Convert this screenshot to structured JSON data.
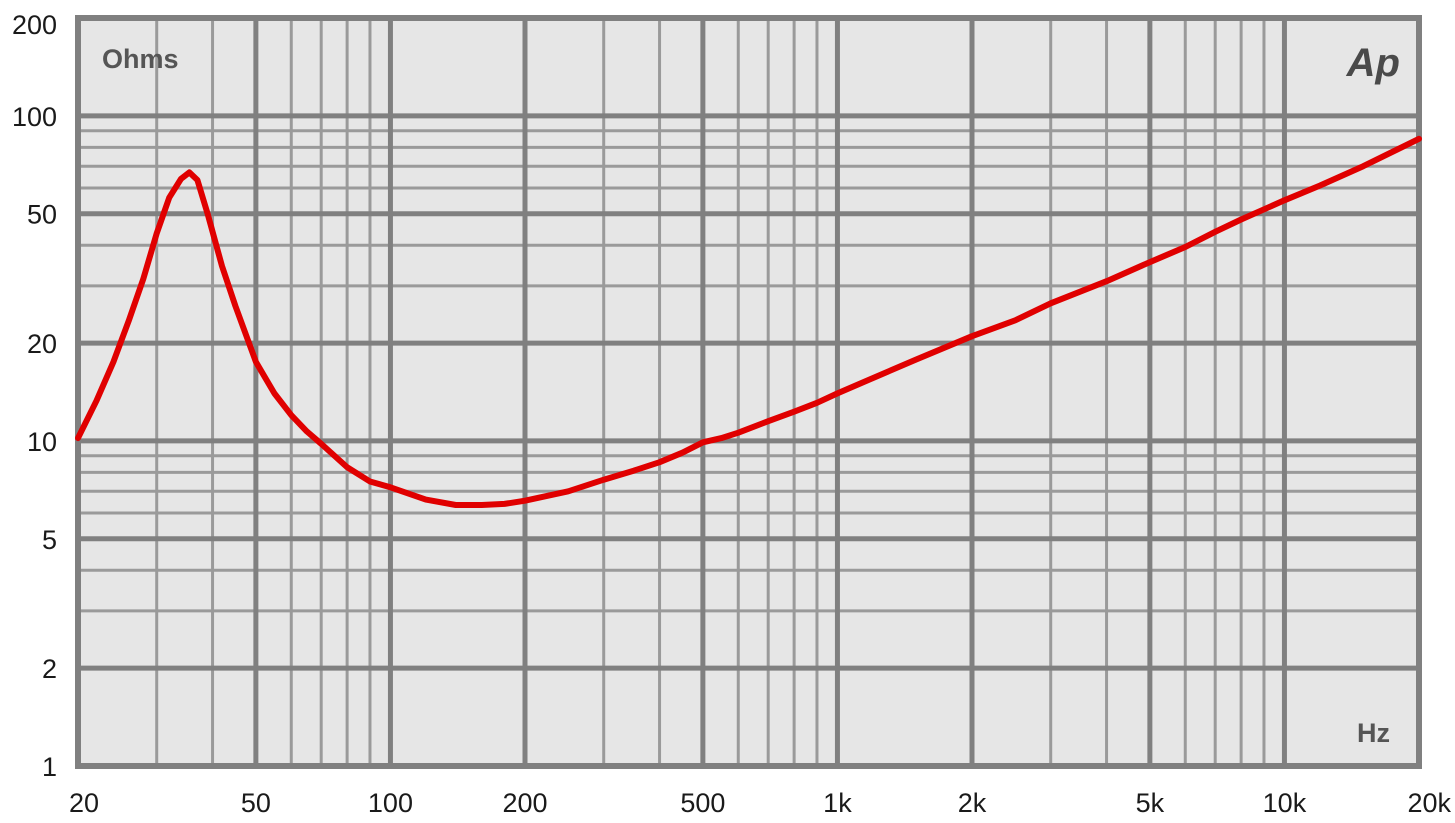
{
  "chart_data": {
    "type": "line",
    "title": "",
    "xlabel": "Hz",
    "ylabel": "Ohms",
    "x_scale": "log",
    "y_scale": "log",
    "xlim": [
      20,
      20000
    ],
    "ylim": [
      1,
      200
    ],
    "grid": true,
    "x_ticks": [
      {
        "value": 20,
        "label": "20"
      },
      {
        "value": 50,
        "label": "50"
      },
      {
        "value": 100,
        "label": "100"
      },
      {
        "value": 200,
        "label": "200"
      },
      {
        "value": 500,
        "label": "500"
      },
      {
        "value": 1000,
        "label": "1k"
      },
      {
        "value": 2000,
        "label": "2k"
      },
      {
        "value": 5000,
        "label": "5k"
      },
      {
        "value": 10000,
        "label": "10k"
      },
      {
        "value": 20000,
        "label": "20k"
      }
    ],
    "y_ticks": [
      {
        "value": 1,
        "label": "1"
      },
      {
        "value": 2,
        "label": "2"
      },
      {
        "value": 5,
        "label": "5"
      },
      {
        "value": 10,
        "label": "10"
      },
      {
        "value": 20,
        "label": "20"
      },
      {
        "value": 50,
        "label": "50"
      },
      {
        "value": 100,
        "label": "100"
      },
      {
        "value": 200,
        "label": "200"
      }
    ],
    "logo_text": "Ap",
    "colors": {
      "plot_background": "#e6e6e6",
      "grid_major": "#808080",
      "grid_minor": "#9a9a9a",
      "line": "#e00000"
    },
    "series": [
      {
        "color": "#e00000",
        "x": [
          20,
          22,
          24,
          26,
          28,
          30,
          32,
          34,
          35.5,
          37,
          39,
          42,
          45,
          50,
          55,
          60,
          65,
          70,
          80,
          90,
          100,
          120,
          140,
          160,
          180,
          200,
          250,
          300,
          350,
          400,
          450,
          500,
          550,
          600,
          700,
          800,
          900,
          1000,
          1200,
          1500,
          2000,
          2500,
          3000,
          4000,
          5000,
          6000,
          7000,
          8000,
          10000,
          12000,
          15000,
          20000
        ],
        "y": [
          10.2,
          13.3,
          17.5,
          23.5,
          31.5,
          43.5,
          56,
          64,
          67,
          63.5,
          50,
          34.5,
          26,
          17.5,
          14,
          12,
          10.7,
          9.8,
          8.3,
          7.5,
          7.2,
          6.6,
          6.35,
          6.35,
          6.4,
          6.55,
          7.0,
          7.6,
          8.1,
          8.6,
          9.2,
          9.9,
          10.2,
          10.6,
          11.5,
          12.3,
          13.1,
          14.0,
          15.6,
          17.8,
          21.0,
          23.5,
          26.5,
          31.0,
          35.5,
          39.5,
          44.0,
          48.0,
          55.0,
          61.0,
          70.0,
          85.0
        ]
      }
    ]
  }
}
